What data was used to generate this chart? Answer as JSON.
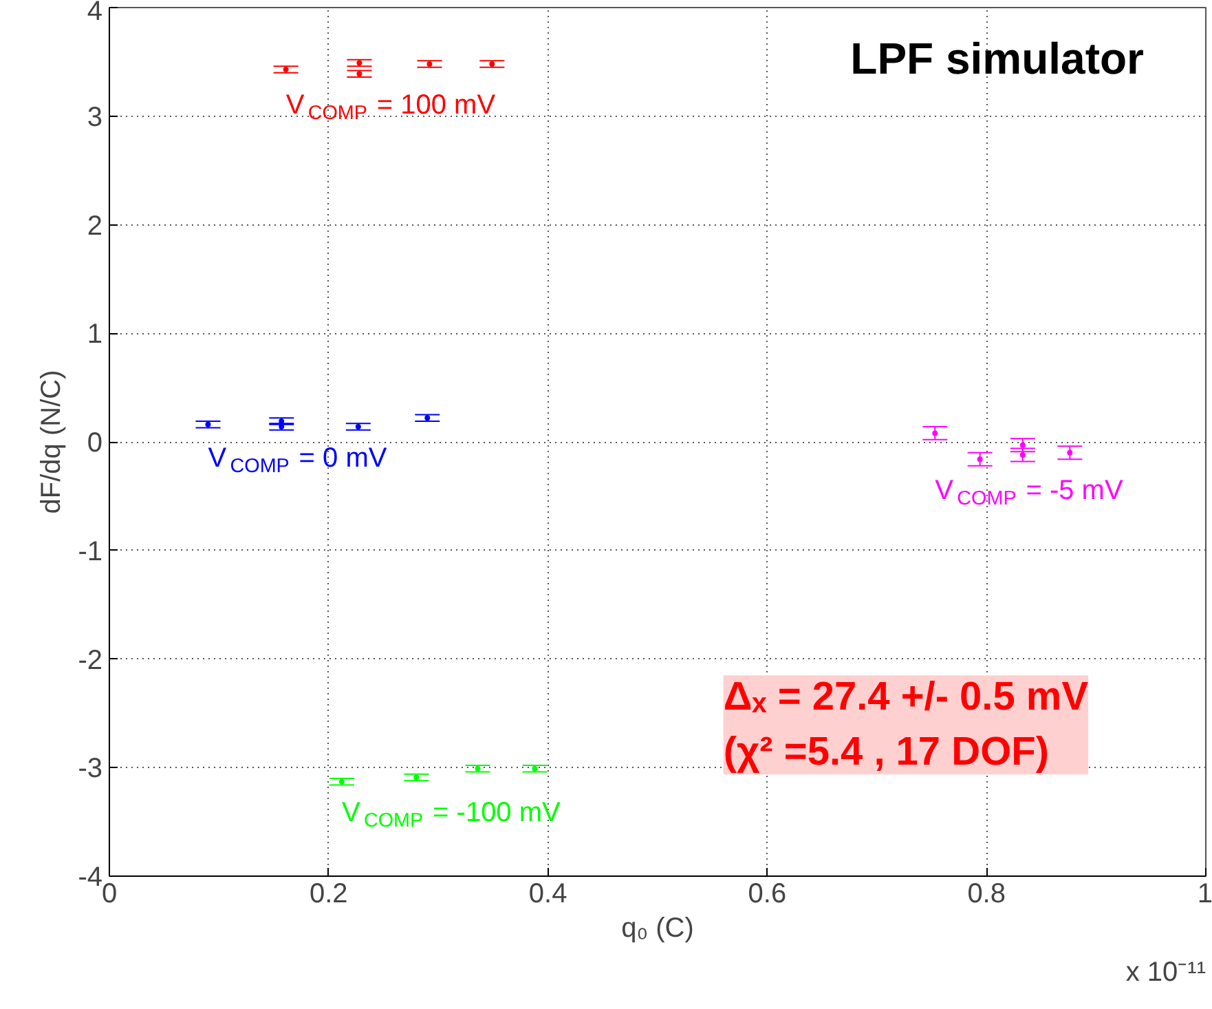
{
  "chart_data": {
    "type": "scatter",
    "title": "LPF simulator",
    "xlabel": "q₀ (C)",
    "ylabel": "dF/dq (N/C)",
    "xlim": [
      0,
      1
    ],
    "xticks": [
      0,
      0.2,
      0.4,
      0.6,
      0.8,
      1
    ],
    "ylim": [
      -4,
      4
    ],
    "yticks": [
      -4,
      -3,
      -2,
      -1,
      0,
      1,
      2,
      3,
      4
    ],
    "grid": true,
    "marker": "circle",
    "series": [
      {
        "name": "V$_{COMP}$ = 100 mV",
        "color": "#ff0000",
        "x": [
          0.161,
          0.228,
          0.228,
          0.292,
          0.349
        ],
        "values": [
          3.43,
          3.49,
          3.39,
          3.48,
          3.48
        ],
        "errors": [
          0.03,
          0.03,
          0.03,
          0.03,
          0.03
        ]
      },
      {
        "name": "V$_{COMP}$ = 0 mV",
        "color": "#0000ff",
        "x": [
          0.09,
          0.157,
          0.157,
          0.227,
          0.29
        ],
        "values": [
          0.16,
          0.19,
          0.14,
          0.14,
          0.22
        ],
        "errors": [
          0.03,
          0.03,
          0.03,
          0.03,
          0.03
        ]
      },
      {
        "name": "V$_{COMP}$ = -100 mV",
        "color": "#00ff00",
        "x": [
          0.212,
          0.28,
          0.336,
          0.388
        ],
        "values": [
          -3.13,
          -3.09,
          -3.01,
          -3.01
        ],
        "errors": [
          0.03,
          0.03,
          0.03,
          0.03
        ]
      },
      {
        "name": "V$_{COMP}$ = -5 mV",
        "color": "#ff00ff",
        "x": [
          0.753,
          0.794,
          0.833,
          0.833,
          0.876
        ],
        "values": [
          0.08,
          -0.16,
          -0.03,
          -0.12,
          -0.1
        ],
        "errors": [
          0.06,
          0.06,
          0.06,
          0.06,
          0.06
        ]
      }
    ],
    "annotations": [
      "Δₓ = 27.4 +/- 0.5 mV\n(χ² =5.4 , 17 DOF)",
      "x 10⁻¹¹"
    ]
  }
}
